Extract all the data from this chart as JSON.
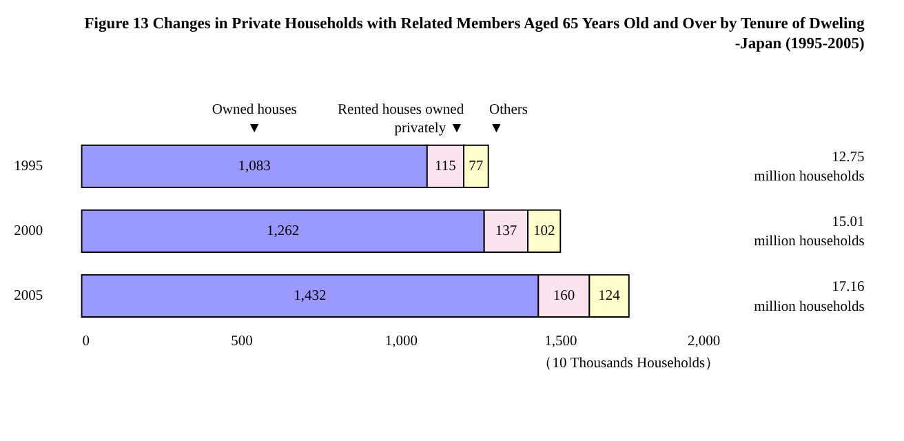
{
  "chart_data": {
    "type": "bar",
    "orientation": "horizontal",
    "stacked": true,
    "title": "Figure 13 Changes in Private Households with Related Members Aged 65 Years Old and Over by Tenure of Dweling\n-Japan (1995-2005)",
    "xlabel": "（10 Thousands Households）",
    "categories": [
      "1995",
      "2000",
      "2005"
    ],
    "series": [
      {
        "name": "Owned houses\n▼",
        "color": "#9999ff",
        "values": [
          1083,
          1262,
          1432
        ],
        "value_labels": [
          "1,083",
          "1,262",
          "1,432"
        ]
      },
      {
        "name": "Rented houses owned\nprivately ▼",
        "color": "#fbe4f0",
        "values": [
          115,
          137,
          160
        ],
        "value_labels": [
          "115",
          "137",
          "160"
        ]
      },
      {
        "name": "Others\n▼",
        "color": "#ffffcc",
        "values": [
          77,
          102,
          124
        ],
        "value_labels": [
          "77",
          "102",
          "124"
        ]
      }
    ],
    "annotations": [
      "12.75\nmillion households",
      "15.01\nmillion households",
      "17.16\nmillion households"
    ],
    "xlim": [
      0,
      2000
    ],
    "xticks": [
      0,
      {
        "value": 500,
        "label": "500"
      },
      {
        "value": 1000,
        "label": "1,000"
      },
      {
        "value": 1500,
        "label": "1,500"
      },
      {
        "value": 2000,
        "label": "2,000"
      }
    ],
    "grid": false
  }
}
